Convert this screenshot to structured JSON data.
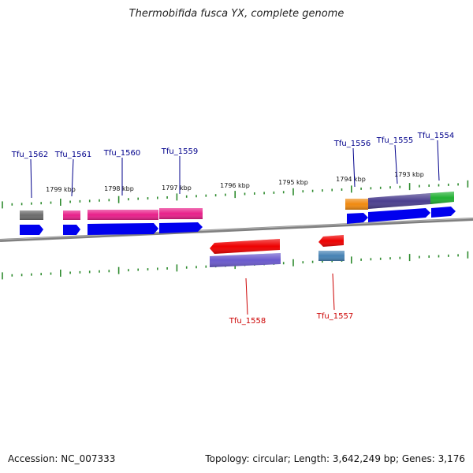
{
  "title": "Thermobifida fusca YX, complete genome",
  "footer": {
    "accession": "Accession: NC_007333",
    "topology": "Topology: circular; Length: 3,642,249 bp; Genes: 3,176"
  },
  "colors": {
    "backbone": "#808080",
    "tick": "#2e8b2e",
    "forward_label": "#00008b",
    "reverse_label": "#cc0000",
    "cds_forward": "#0000ee",
    "cds_reverse": "#ee0000"
  },
  "scale_labels": [
    {
      "text": "1799 kbp"
    },
    {
      "text": "1798 kbp"
    },
    {
      "text": "1797 kbp"
    },
    {
      "text": "1796 kbp"
    },
    {
      "text": "1795 kbp"
    },
    {
      "text": "1794 kbp"
    },
    {
      "text": "1793 kbp"
    }
  ],
  "genes": [
    {
      "id": "Tfu_1562",
      "strand": "+",
      "feature_color": "#6b6b6b"
    },
    {
      "id": "Tfu_1561",
      "strand": "+",
      "feature_color": "#e8208a"
    },
    {
      "id": "Tfu_1560",
      "strand": "+",
      "feature_color": "#e8208a"
    },
    {
      "id": "Tfu_1559",
      "strand": "+",
      "feature_color": "#e8208a"
    },
    {
      "id": "Tfu_1556",
      "strand": "+",
      "feature_color": "#f08a10"
    },
    {
      "id": "Tfu_1555",
      "strand": "+",
      "feature_color": "#4b3f8f"
    },
    {
      "id": "Tfu_1554",
      "strand": "+",
      "feature_color": "#22b033"
    },
    {
      "id": "Tfu_1558",
      "strand": "-",
      "feature_color": "#6a5acd"
    },
    {
      "id": "Tfu_1557",
      "strand": "-",
      "feature_color": "#4682b4"
    }
  ]
}
